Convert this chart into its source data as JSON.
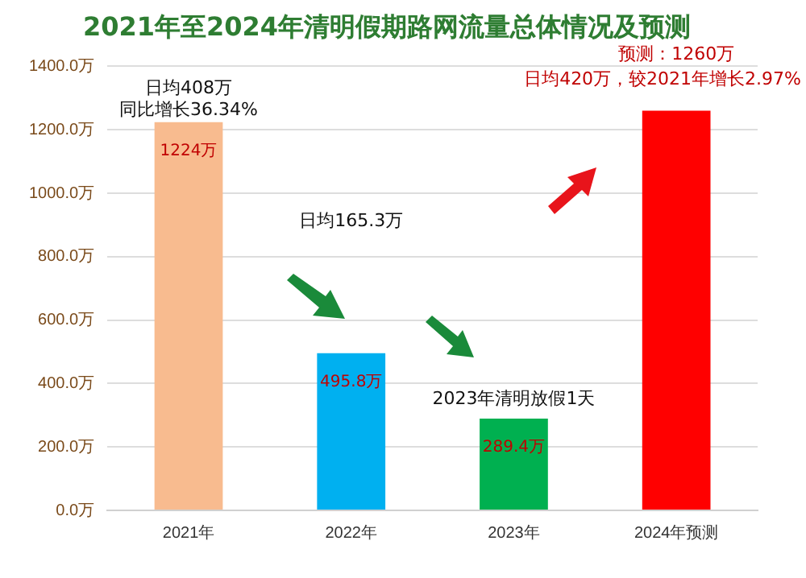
{
  "chart_data": {
    "type": "bar",
    "title": "2021年至2024年清明假期路网流量总体情况及预测",
    "categories": [
      "2021年",
      "2022年",
      "2023年",
      "2024年预测"
    ],
    "values": [
      1224,
      495.8,
      289.4,
      1260
    ],
    "colors": [
      "#f8bb8f",
      "#00b0f0",
      "#00b050",
      "#ff0000"
    ],
    "value_labels": [
      "1224万",
      "495.8万",
      "289.4万",
      null
    ],
    "ylim": [
      0,
      1400
    ],
    "yticks": [
      {
        "value": 0,
        "label": "0.0万"
      },
      {
        "value": 200,
        "label": "200.0万"
      },
      {
        "value": 400,
        "label": "400.0万"
      },
      {
        "value": 600,
        "label": "600.0万"
      },
      {
        "value": 800,
        "label": "800.0万"
      },
      {
        "value": 1000,
        "label": "1000.0万"
      },
      {
        "value": 1200,
        "label": "1200.0万"
      },
      {
        "value": 1400,
        "label": "1400.0万"
      }
    ],
    "grid": "y",
    "annotations": [
      "日均408万",
      "同比增长36.34%",
      "日均165.3万",
      "2023年清明放假1天",
      "预测：1260万",
      "日均420万，较2021年增长2.97%"
    ]
  }
}
